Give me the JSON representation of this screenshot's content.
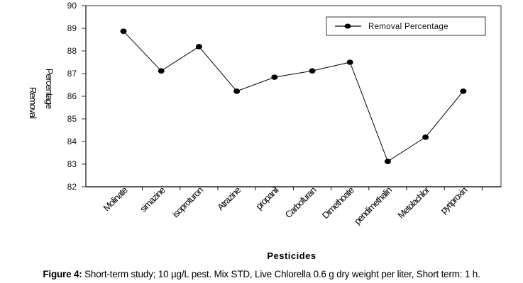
{
  "chart_data": {
    "type": "line",
    "title": "",
    "xlabel": "Pesticides",
    "ylabel_lines": [
      "Removal",
      "Percentage"
    ],
    "ylim": [
      82,
      90
    ],
    "yticks": [
      82,
      83,
      84,
      85,
      86,
      87,
      88,
      89,
      90
    ],
    "grid": false,
    "legend": {
      "position": "top-right",
      "entries": [
        "Removal Percentage"
      ]
    },
    "categories": [
      "Molinate",
      "simazine",
      "isoproturon",
      "Atrazine",
      "propanil",
      "Carbofuran",
      "Dimethoate",
      "pendimethalin",
      "Metolachlor",
      "pyriproxin"
    ],
    "series": [
      {
        "name": "Removal Percentage",
        "marker": "circle",
        "color": "#000000",
        "values": [
          88.87,
          87.12,
          88.19,
          86.22,
          86.84,
          87.12,
          87.5,
          83.12,
          84.19,
          86.22
        ]
      }
    ]
  },
  "caption": {
    "label": "Figure 4:",
    "text": " Short-term study; 10 µg/L pest. Mix STD, Live Chlorella 0.6 g dry weight per liter, Short term: 1 h."
  }
}
